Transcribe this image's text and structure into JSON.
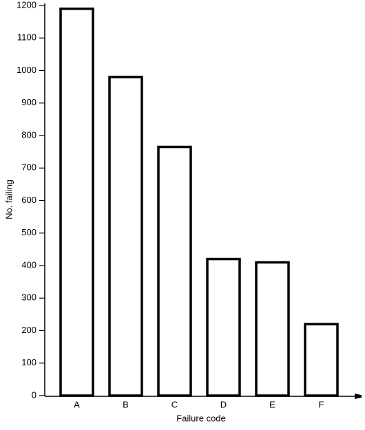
{
  "chart_data": {
    "type": "bar",
    "x_label": "Failure code",
    "y_label": "No. failing",
    "categories": [
      "A",
      "B",
      "C",
      "D",
      "E",
      "F"
    ],
    "values": [
      1190,
      980,
      765,
      420,
      410,
      220
    ],
    "color": "#ffffff",
    "ylim": [
      0,
      1200
    ],
    "yticks": [
      0,
      100,
      200,
      300,
      400,
      500,
      600,
      700,
      800,
      900,
      1000,
      1100,
      1200
    ],
    "grid": false
  }
}
